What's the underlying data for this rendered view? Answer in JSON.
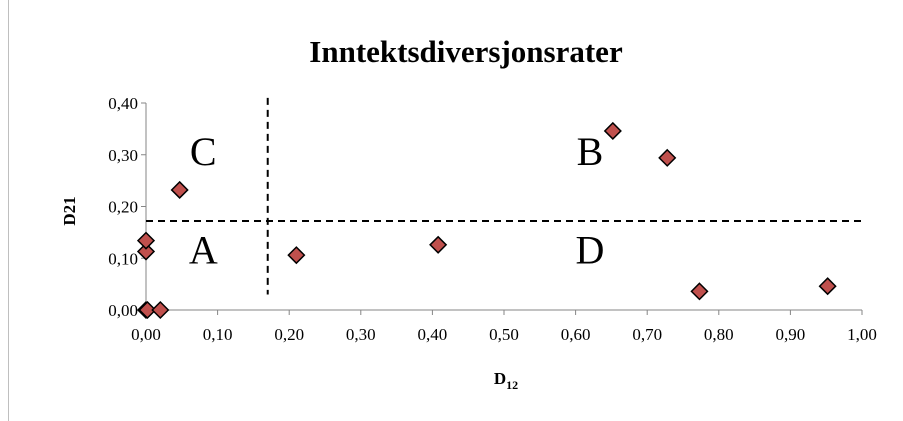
{
  "chart_data": {
    "type": "scatter",
    "title": "Inntektsdiversjonsrater",
    "xlabel": "D",
    "xlabel_subscript": "12",
    "ylabel": "D21",
    "xlim": [
      0,
      1.0
    ],
    "ylim": [
      0,
      0.4
    ],
    "x_ticks": [
      "0,00",
      "0,10",
      "0,20",
      "0,30",
      "0,40",
      "0,50",
      "0,60",
      "0,70",
      "0,80",
      "0,90",
      "1,00"
    ],
    "y_ticks": [
      "0,00",
      "0,10",
      "0,20",
      "0,30",
      "0,40"
    ],
    "x_tick_values": [
      0,
      0.1,
      0.2,
      0.3,
      0.4,
      0.5,
      0.6,
      0.7,
      0.8,
      0.9,
      1.0
    ],
    "y_tick_values": [
      0,
      0.1,
      0.2,
      0.3,
      0.4
    ],
    "grid": false,
    "marker": {
      "shape": "diamond",
      "fill": "#c0504d",
      "stroke": "#000000"
    },
    "points": [
      {
        "x": 0.0,
        "y": 0.0
      },
      {
        "x": 0.002,
        "y": 0.0
      },
      {
        "x": 0.02,
        "y": 0.0
      },
      {
        "x": 0.0,
        "y": 0.113
      },
      {
        "x": 0.0,
        "y": 0.134
      },
      {
        "x": 0.047,
        "y": 0.232
      },
      {
        "x": 0.21,
        "y": 0.106
      },
      {
        "x": 0.408,
        "y": 0.126
      },
      {
        "x": 0.652,
        "y": 0.346
      },
      {
        "x": 0.728,
        "y": 0.294
      },
      {
        "x": 0.773,
        "y": 0.036
      },
      {
        "x": 0.952,
        "y": 0.046
      }
    ],
    "reference_lines": [
      {
        "orientation": "vertical",
        "value": 0.17,
        "from": 0.03,
        "to": 0.41,
        "style": "dashed",
        "color": "#000000"
      },
      {
        "orientation": "horizontal",
        "value": 0.172,
        "from": 0.0,
        "to": 1.0,
        "style": "dashed",
        "color": "#000000"
      }
    ],
    "annotations": [
      {
        "text": "C",
        "x": 0.08,
        "y": 0.28
      },
      {
        "text": "B",
        "x": 0.62,
        "y": 0.28
      },
      {
        "text": "A",
        "x": 0.08,
        "y": 0.09
      },
      {
        "text": "D",
        "x": 0.62,
        "y": 0.09
      }
    ]
  }
}
